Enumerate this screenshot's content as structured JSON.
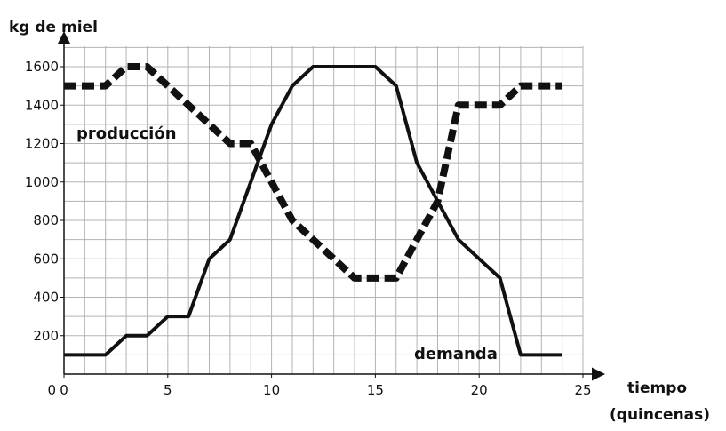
{
  "chart_data": {
    "type": "line",
    "title": "kg de miel",
    "xlabel": [
      "tiempo",
      "(quincenas)"
    ],
    "ylabel": "",
    "xlim": [
      0,
      25
    ],
    "ylim": [
      0,
      1600
    ],
    "x_ticks": [
      "0",
      "5",
      "10",
      "15",
      "20",
      "25"
    ],
    "y_ticks": [
      "200",
      "400",
      "600",
      "800",
      "1000",
      "1200",
      "1400",
      "1600"
    ],
    "origin_label": "0",
    "grid": true,
    "series": [
      {
        "name": "producción",
        "x": [
          0,
          2,
          3,
          4,
          5,
          6,
          7,
          8,
          9,
          10,
          11,
          12,
          13,
          14,
          15,
          16,
          17,
          18,
          19,
          20,
          21,
          22,
          23,
          24
        ],
        "values": [
          1500,
          1500,
          1600,
          1600,
          1500,
          1400,
          1300,
          1200,
          1200,
          1000,
          800,
          700,
          600,
          500,
          500,
          500,
          700,
          900,
          1400,
          1400,
          1400,
          1500,
          1500,
          1500
        ]
      },
      {
        "name": "demanda",
        "x": [
          0,
          2,
          3,
          4,
          5,
          6,
          7,
          8,
          9,
          10,
          11,
          12,
          13,
          14,
          15,
          16,
          17,
          18,
          19,
          20,
          21,
          22,
          23,
          24
        ],
        "values": [
          100,
          100,
          200,
          200,
          300,
          300,
          600,
          700,
          1000,
          1300,
          1500,
          1600,
          1600,
          1600,
          1600,
          1500,
          1100,
          900,
          700,
          600,
          500,
          100,
          100,
          100
        ]
      }
    ]
  }
}
